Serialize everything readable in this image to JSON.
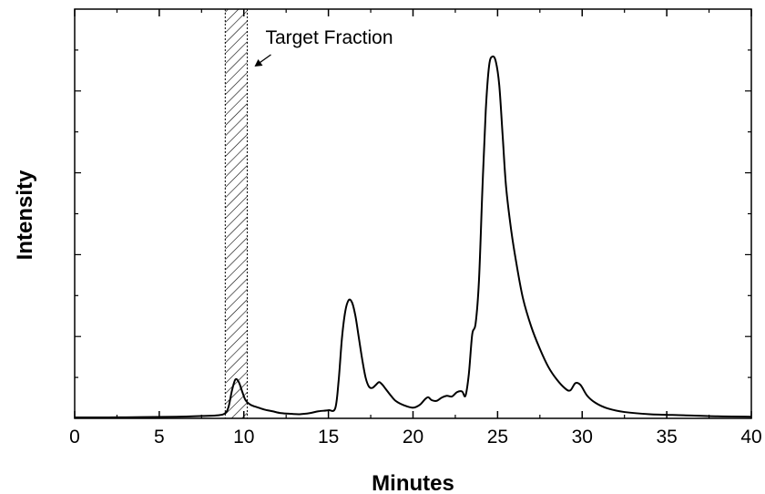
{
  "chart_data": {
    "type": "line",
    "xlabel": "Minutes",
    "ylabel": "Intensity",
    "xlim": [
      0,
      40
    ],
    "ylim": [
      0,
      1
    ],
    "x_ticks": [
      "0",
      "5",
      "10",
      "15",
      "20",
      "25",
      "30",
      "35",
      "40"
    ],
    "grid": false,
    "shaded_region": {
      "x_start": 8.9,
      "x_end": 10.2,
      "pattern": "hatched"
    },
    "annotation": {
      "text": "Target Fraction",
      "points_to_x": 10.2
    },
    "series": [
      {
        "name": "",
        "x": [
          0,
          2,
          4,
          6,
          7.5,
          8.5,
          8.9,
          9.1,
          9.3,
          9.5,
          9.7,
          9.9,
          10.1,
          10.4,
          10.8,
          11.2,
          11.7,
          12.2,
          12.8,
          13.3,
          13.9,
          14.4,
          15.0,
          15.4,
          15.6,
          15.8,
          16.0,
          16.2,
          16.4,
          16.6,
          16.8,
          17.0,
          17.2,
          17.4,
          17.6,
          17.8,
          18.0,
          18.2,
          18.4,
          18.7,
          19.0,
          19.5,
          20.0,
          20.4,
          20.7,
          20.9,
          21.1,
          21.4,
          21.7,
          22.0,
          22.3,
          22.6,
          22.9,
          23.1,
          23.3,
          23.5,
          23.7,
          23.9,
          24.1,
          24.3,
          24.5,
          24.7,
          24.9,
          25.1,
          25.3,
          25.5,
          25.8,
          26.1,
          26.5,
          27.0,
          27.5,
          28.0,
          28.5,
          29.0,
          29.3,
          29.6,
          29.9,
          30.3,
          30.8,
          31.5,
          32.5,
          34.0,
          36.0,
          38.0,
          40.0
        ],
        "y": [
          0.0,
          0.0,
          0.001,
          0.002,
          0.004,
          0.006,
          0.012,
          0.03,
          0.075,
          0.105,
          0.098,
          0.072,
          0.048,
          0.035,
          0.028,
          0.022,
          0.017,
          0.012,
          0.01,
          0.009,
          0.012,
          0.017,
          0.02,
          0.025,
          0.1,
          0.22,
          0.295,
          0.325,
          0.318,
          0.28,
          0.22,
          0.16,
          0.11,
          0.085,
          0.082,
          0.09,
          0.098,
          0.09,
          0.078,
          0.06,
          0.045,
          0.033,
          0.027,
          0.035,
          0.05,
          0.056,
          0.048,
          0.046,
          0.055,
          0.06,
          0.058,
          0.07,
          0.072,
          0.06,
          0.12,
          0.23,
          0.26,
          0.38,
          0.63,
          0.85,
          0.975,
          1.0,
          0.985,
          0.92,
          0.78,
          0.64,
          0.52,
          0.43,
          0.33,
          0.25,
          0.19,
          0.14,
          0.105,
          0.08,
          0.075,
          0.095,
          0.09,
          0.06,
          0.04,
          0.025,
          0.015,
          0.009,
          0.006,
          0.003,
          0.002
        ]
      }
    ]
  }
}
